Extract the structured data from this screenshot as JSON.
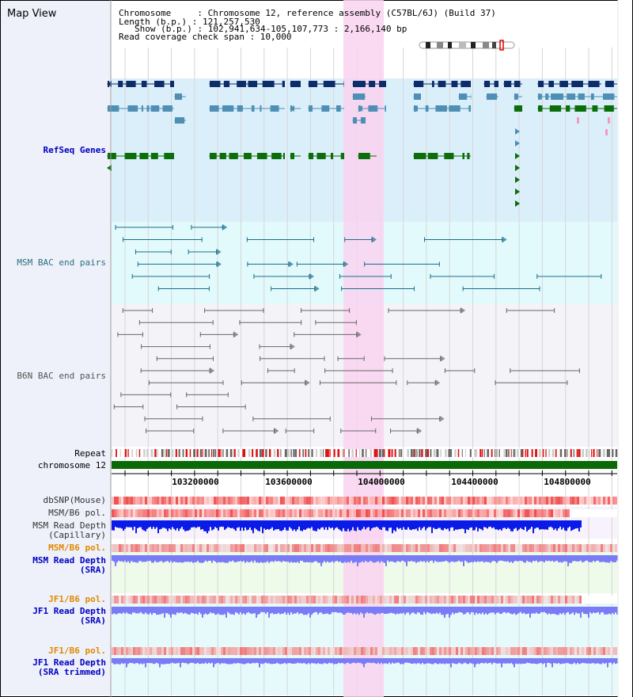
{
  "page": {
    "title": "Map View"
  },
  "info": {
    "chromosome_line": "Chromosome     : Chromosome 12, reference assembly (C57BL/6J) (Build 37)",
    "length_line": "Length (b.p.) : 121,257,530",
    "show_line": "Show (b.p.) : 102,941,634-105,107,773 : 2,166,140 bp",
    "span_line": "Read coverage check span : 10,000"
  },
  "tracks": {
    "refseq": "RefSeq Genes",
    "msm_bac": "MSM BAC end pairs",
    "b6n_bac": "B6N BAC end pairs",
    "repeat": "Repeat",
    "chromosome": "chromosome 12",
    "dbsnp": "dbSNP(Mouse)",
    "msm_b6_pol_1": "MSM/B6 pol.",
    "msm_depth_cap_1": "MSM Read Depth",
    "msm_depth_cap_2": "(Capillary)",
    "msm_b6_pol_2": "MSM/B6 pol.",
    "msm_depth_sra_1": "MSM Read Depth",
    "msm_depth_sra_2": "(SRA)",
    "jf1_b6_pol_1": "JF1/B6 pol.",
    "jf1_depth_sra_1": "JF1 Read Depth",
    "jf1_depth_sra_2": "(SRA)",
    "jf1_b6_pol_2": "JF1/B6 pol.",
    "jf1_depth_trim_1": "JF1 Read Depth",
    "jf1_depth_trim_2": "(SRA trimmed)"
  },
  "axis": {
    "ticks": [
      "103200000",
      "103600000",
      "104000000",
      "104400000",
      "104800000"
    ]
  },
  "colors": {
    "highlight": "#f9d2f0",
    "refseq_bg": "#dbeffa",
    "msm_bac_bg": "#e2fafc",
    "b6n_bac_bg": "#f4f4f8",
    "gene_dark": "#0c2c6a",
    "gene_mid": "#4f8fb5",
    "gene_green": "#0b6e0b",
    "bac_msm": "#1a6d8a",
    "bac_b6n": "#666666",
    "chromosome_bar": "#0a6a0a",
    "depth_capillary": "#0a1be8",
    "depth_sra": "#7a7cf6"
  }
}
